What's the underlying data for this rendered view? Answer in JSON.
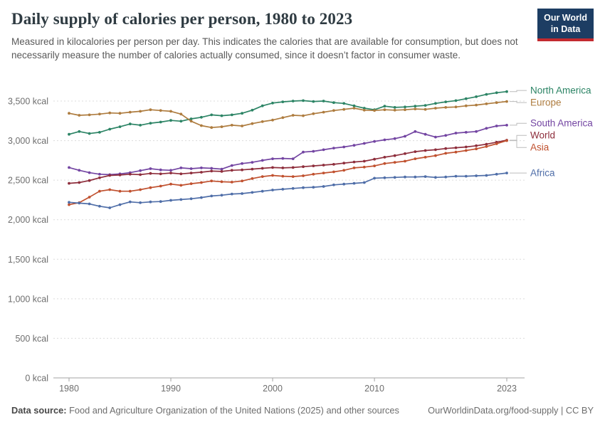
{
  "header": {
    "title": "Daily supply of calories per person, 1980 to 2023",
    "subtitle": "Measured in kilocalories per person per day. This indicates the calories that are available for consumption, but does not necessarily measure the number of calories actually consumed, since it doesn’t factor in consumer waste.",
    "logo": {
      "line1": "Our World",
      "line2": "in Data"
    }
  },
  "footer": {
    "source_label": "Data source:",
    "source_text": " Food and Agriculture Organization of the United Nations (2025) and other sources",
    "credit": "OurWorldinData.org/food-supply | CC BY"
  },
  "chart_data": {
    "type": "line",
    "title": "Daily supply of calories per person, 1980 to 2023",
    "ylabel": "",
    "xlabel": "",
    "ylim": [
      0,
      3500
    ],
    "xlim": [
      1980,
      2023
    ],
    "grid": "horizontal-dashed",
    "legend_position": "right-of-lines",
    "yticks": [
      0,
      500,
      1000,
      1500,
      2000,
      2500,
      3000,
      3500
    ],
    "ytick_suffix": " kcal",
    "xticks": [
      1980,
      1990,
      2000,
      2010,
      2023
    ],
    "x": [
      1980,
      1981,
      1982,
      1983,
      1984,
      1985,
      1986,
      1987,
      1988,
      1989,
      1990,
      1991,
      1992,
      1993,
      1994,
      1995,
      1996,
      1997,
      1998,
      1999,
      2000,
      2001,
      2002,
      2003,
      2004,
      2005,
      2006,
      2007,
      2008,
      2009,
      2010,
      2011,
      2012,
      2013,
      2014,
      2015,
      2016,
      2017,
      2018,
      2019,
      2020,
      2021,
      2022,
      2023
    ],
    "series": [
      {
        "name": "North America",
        "color": "#2C8465",
        "values": [
          3080,
          3115,
          3090,
          3105,
          3145,
          3175,
          3210,
          3195,
          3220,
          3235,
          3255,
          3245,
          3275,
          3295,
          3325,
          3315,
          3325,
          3345,
          3385,
          3440,
          3475,
          3490,
          3500,
          3505,
          3495,
          3500,
          3480,
          3470,
          3440,
          3410,
          3390,
          3435,
          3420,
          3425,
          3435,
          3445,
          3470,
          3490,
          3505,
          3530,
          3555,
          3585,
          3605,
          3620
        ]
      },
      {
        "name": "Europe",
        "color": "#AE7C3F",
        "values": [
          3345,
          3320,
          3325,
          3335,
          3350,
          3345,
          3360,
          3370,
          3390,
          3380,
          3370,
          3335,
          3245,
          3190,
          3165,
          3175,
          3195,
          3185,
          3215,
          3240,
          3260,
          3290,
          3320,
          3315,
          3340,
          3360,
          3380,
          3395,
          3410,
          3385,
          3380,
          3390,
          3385,
          3390,
          3400,
          3395,
          3410,
          3420,
          3425,
          3440,
          3450,
          3465,
          3480,
          3495
        ]
      },
      {
        "name": "South America",
        "color": "#7345A2",
        "values": [
          2660,
          2625,
          2595,
          2575,
          2570,
          2580,
          2595,
          2620,
          2645,
          2630,
          2625,
          2655,
          2645,
          2655,
          2650,
          2640,
          2685,
          2710,
          2725,
          2750,
          2770,
          2775,
          2770,
          2855,
          2865,
          2885,
          2905,
          2920,
          2940,
          2965,
          2990,
          3010,
          3025,
          3055,
          3115,
          3080,
          3045,
          3065,
          3095,
          3105,
          3115,
          3155,
          3185,
          3195
        ]
      },
      {
        "name": "World",
        "color": "#8E2E3C",
        "values": [
          2460,
          2470,
          2495,
          2530,
          2560,
          2565,
          2575,
          2570,
          2585,
          2580,
          2590,
          2580,
          2590,
          2600,
          2615,
          2610,
          2625,
          2630,
          2640,
          2650,
          2660,
          2655,
          2660,
          2670,
          2680,
          2690,
          2700,
          2715,
          2730,
          2740,
          2765,
          2790,
          2810,
          2835,
          2860,
          2875,
          2885,
          2900,
          2910,
          2920,
          2935,
          2955,
          2980,
          3005
        ]
      },
      {
        "name": "Asia",
        "color": "#C0512F",
        "values": [
          2190,
          2215,
          2285,
          2360,
          2380,
          2360,
          2360,
          2380,
          2405,
          2425,
          2450,
          2435,
          2455,
          2470,
          2490,
          2480,
          2475,
          2490,
          2520,
          2545,
          2560,
          2550,
          2545,
          2555,
          2575,
          2590,
          2605,
          2625,
          2655,
          2665,
          2680,
          2710,
          2725,
          2740,
          2770,
          2790,
          2810,
          2840,
          2855,
          2875,
          2895,
          2925,
          2960,
          3000
        ]
      },
      {
        "name": "Africa",
        "color": "#4F6EA8",
        "values": [
          2220,
          2210,
          2200,
          2170,
          2150,
          2190,
          2225,
          2215,
          2225,
          2230,
          2245,
          2255,
          2265,
          2280,
          2300,
          2310,
          2325,
          2330,
          2345,
          2360,
          2375,
          2385,
          2395,
          2405,
          2410,
          2420,
          2440,
          2450,
          2460,
          2470,
          2525,
          2530,
          2535,
          2540,
          2540,
          2545,
          2535,
          2540,
          2550,
          2550,
          2555,
          2560,
          2575,
          2590
        ]
      }
    ]
  }
}
